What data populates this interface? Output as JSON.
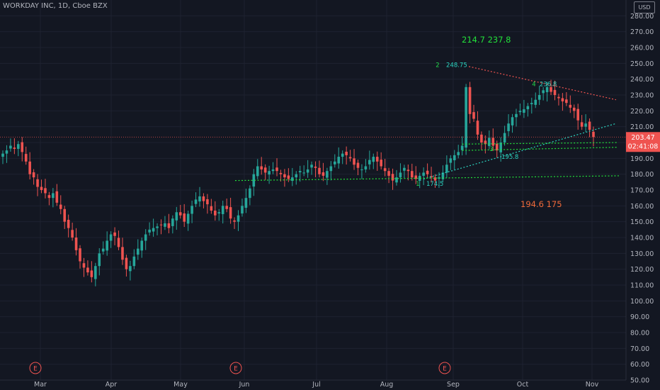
{
  "header": {
    "title": "WORKDAY INC, 1D, Cboe BZX",
    "currency": "USD"
  },
  "price_badge": {
    "value": "203.47",
    "countdown": "02:41:08"
  },
  "chart_data": {
    "type": "candlestick",
    "title": "WORKDAY INC, 1D, Cboe BZX",
    "ylim": [
      50,
      290
    ],
    "y_ticks": [
      50,
      60,
      70,
      80,
      90,
      100,
      110,
      120,
      130,
      140,
      150,
      160,
      170,
      180,
      190,
      200,
      210,
      220,
      230,
      240,
      250,
      260,
      270,
      280
    ],
    "x_ticks": [
      "Mar",
      "Apr",
      "May",
      "Jun",
      "Jul",
      "Aug",
      "Sep",
      "Oct",
      "Nov"
    ],
    "earnings_markers": [
      {
        "label": "E",
        "date": "Feb 25"
      },
      {
        "label": "E",
        "date": "May 26"
      },
      {
        "label": "E",
        "date": "Aug 30"
      }
    ],
    "close_series": [
      193,
      195,
      198,
      196,
      199,
      194,
      188,
      180,
      178,
      172,
      170,
      168,
      165,
      168,
      162,
      158,
      150,
      146,
      140,
      132,
      125,
      121,
      118,
      115,
      122,
      130,
      133,
      138,
      142,
      141,
      134,
      126,
      120,
      122,
      128,
      133,
      138,
      142,
      145,
      146,
      147,
      148,
      149,
      146,
      152,
      156,
      154,
      150,
      155,
      160,
      164,
      166,
      163,
      161,
      157,
      154,
      156,
      160,
      158,
      152,
      150,
      154,
      160,
      165,
      171,
      180,
      185,
      183,
      181,
      182,
      183,
      182,
      180,
      178,
      177,
      178,
      180,
      182,
      181,
      183,
      186,
      184,
      180,
      179,
      182,
      185,
      188,
      191,
      193,
      192,
      190,
      186,
      184,
      183,
      185,
      189,
      191,
      188,
      185,
      182,
      179,
      176,
      178,
      181,
      184,
      182,
      178,
      177,
      179,
      181,
      180,
      178,
      176,
      178,
      181,
      186,
      190,
      192,
      194,
      198,
      235,
      218,
      215,
      205,
      200,
      199,
      203,
      198,
      195,
      200,
      206,
      212,
      216,
      218,
      220,
      221,
      223,
      225,
      227,
      230,
      233,
      235,
      232,
      230,
      228,
      226,
      225,
      222,
      220,
      214,
      210,
      212,
      208,
      203.47
    ],
    "annotations": [
      {
        "label": "1",
        "value": "174.5"
      },
      {
        "label": "2",
        "value": "248.75"
      },
      {
        "label": "3",
        "value": "195.8"
      },
      {
        "label": "4",
        "value": "236.8"
      }
    ],
    "targets_up": [
      "214.7",
      "237.8"
    ],
    "targets_down": [
      "194.6",
      "175"
    ],
    "colors": {
      "background": "#131722",
      "up": "#26a69a",
      "down": "#ef5350",
      "grid": "#1e2230",
      "text": "#b2b5be",
      "target_up": "#22e03a",
      "target_down": "#f06a3a",
      "wave_label": "#22d84a",
      "resistance": "#ef5350",
      "support": "#2bd4c0",
      "horizontal": "#22e03a"
    }
  }
}
